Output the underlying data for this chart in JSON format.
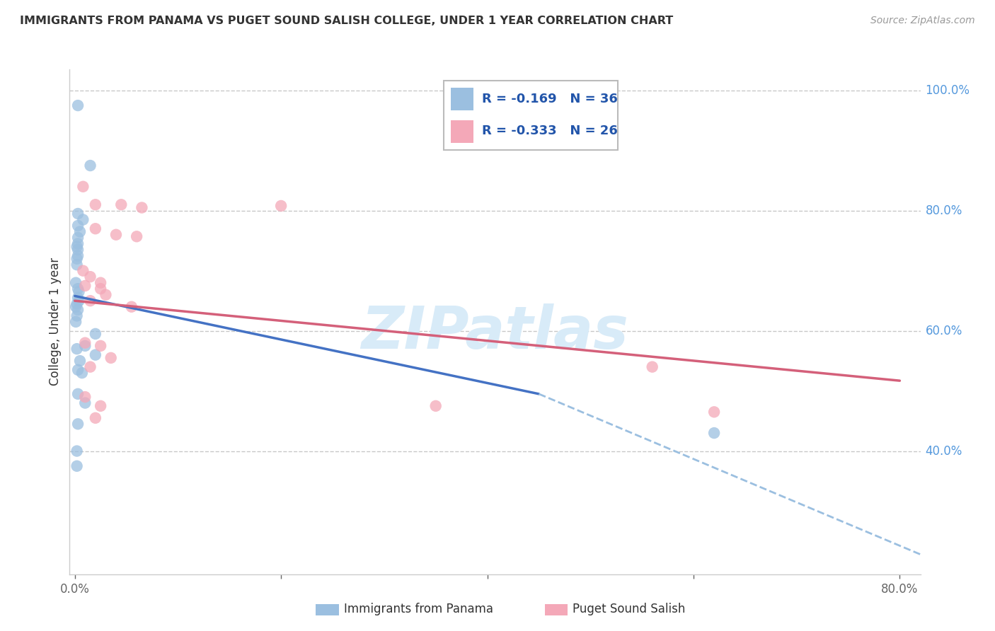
{
  "title": "IMMIGRANTS FROM PANAMA VS PUGET SOUND SALISH COLLEGE, UNDER 1 YEAR CORRELATION CHART",
  "source": "Source: ZipAtlas.com",
  "ylabel": "College, Under 1 year",
  "xlabel_blue": "Immigrants from Panama",
  "xlabel_pink": "Puget Sound Salish",
  "legend_blue_R": "-0.169",
  "legend_blue_N": "36",
  "legend_pink_R": "-0.333",
  "legend_pink_N": "26",
  "xlim": [
    -0.005,
    0.82
  ],
  "ylim": [
    0.195,
    1.035
  ],
  "xtick_positions": [
    0.0,
    0.2,
    0.4,
    0.6,
    0.8
  ],
  "xtick_labels": [
    "0.0%",
    "",
    "",
    "",
    "80.0%"
  ],
  "yticks_right": [
    0.4,
    0.6,
    0.8,
    1.0
  ],
  "ytick_right_labels": [
    "40.0%",
    "60.0%",
    "80.0%",
    "100.0%"
  ],
  "grid_color": "#c8c8c8",
  "blue_dot_color": "#9BBFE0",
  "pink_dot_color": "#F4A8B8",
  "blue_line_color": "#4472C4",
  "pink_line_color": "#D4607A",
  "blue_dash_color": "#9BBFE0",
  "watermark_text": "ZIPatlas",
  "watermark_color": "#D8EBF8",
  "blue_scatter_x": [
    0.003,
    0.015,
    0.003,
    0.008,
    0.003,
    0.005,
    0.003,
    0.003,
    0.002,
    0.003,
    0.003,
    0.002,
    0.002,
    0.001,
    0.003,
    0.004,
    0.003,
    0.004,
    0.002,
    0.001,
    0.003,
    0.002,
    0.001,
    0.02,
    0.01,
    0.002,
    0.02,
    0.005,
    0.003,
    0.007,
    0.003,
    0.01,
    0.003,
    0.002,
    0.002,
    0.62
  ],
  "blue_scatter_y": [
    0.975,
    0.875,
    0.795,
    0.785,
    0.775,
    0.765,
    0.755,
    0.745,
    0.74,
    0.735,
    0.725,
    0.72,
    0.71,
    0.68,
    0.67,
    0.665,
    0.655,
    0.65,
    0.645,
    0.64,
    0.635,
    0.625,
    0.615,
    0.595,
    0.575,
    0.57,
    0.56,
    0.55,
    0.535,
    0.53,
    0.495,
    0.48,
    0.445,
    0.4,
    0.375,
    0.43
  ],
  "pink_scatter_x": [
    0.008,
    0.02,
    0.045,
    0.065,
    0.2,
    0.02,
    0.04,
    0.06,
    0.008,
    0.015,
    0.025,
    0.01,
    0.025,
    0.03,
    0.015,
    0.055,
    0.01,
    0.025,
    0.035,
    0.015,
    0.01,
    0.025,
    0.02,
    0.56,
    0.62,
    0.35
  ],
  "pink_scatter_y": [
    0.84,
    0.81,
    0.81,
    0.805,
    0.808,
    0.77,
    0.76,
    0.757,
    0.7,
    0.69,
    0.68,
    0.675,
    0.67,
    0.66,
    0.65,
    0.64,
    0.58,
    0.575,
    0.555,
    0.54,
    0.49,
    0.475,
    0.455,
    0.54,
    0.465,
    0.475
  ],
  "blue_line": {
    "x": [
      0.0,
      0.45
    ],
    "y": [
      0.658,
      0.495
    ]
  },
  "pink_line": {
    "x": [
      0.0,
      0.8
    ],
    "y": [
      0.65,
      0.517
    ]
  },
  "blue_dash": {
    "x": [
      0.45,
      0.82
    ],
    "y": [
      0.495,
      0.228
    ]
  }
}
